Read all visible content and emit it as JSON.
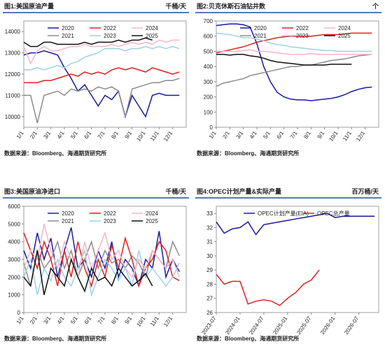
{
  "chart_data": [
    {
      "type": "line",
      "title": "图1:美国原油产量",
      "unit": "千桶/天",
      "source": "数据来源：Bloomberg、海通期货研究所",
      "x": [
        1,
        1.5,
        2,
        2.5,
        3,
        3.5,
        4,
        4.5,
        5,
        5.5,
        6,
        6.5,
        7,
        7.5,
        8,
        8.5,
        9,
        9.5,
        10,
        10.5,
        11,
        11.5,
        12,
        12.5
      ],
      "xlim": [
        1,
        13
      ],
      "xticks": [
        {
          "value": 1,
          "label": "1/1"
        },
        {
          "value": 2,
          "label": "2/1"
        },
        {
          "value": 3,
          "label": "3/1"
        },
        {
          "value": 4,
          "label": "4/1"
        },
        {
          "value": 5,
          "label": "5/1"
        },
        {
          "value": 6,
          "label": "6/1"
        },
        {
          "value": 7,
          "label": "7/1"
        },
        {
          "value": 8,
          "label": "8/1"
        },
        {
          "value": 9,
          "label": "9/1"
        },
        {
          "value": 10,
          "label": "10/1"
        },
        {
          "value": 11,
          "label": "11/1"
        },
        {
          "value": 12,
          "label": "12/1"
        }
      ],
      "ylim": [
        9500,
        14500
      ],
      "yticks": [
        10000,
        11000,
        12000,
        13000,
        14000
      ],
      "series": [
        {
          "name": "2020",
          "color": "#1a1a9c",
          "values": [
            12900,
            13000,
            13000,
            13100,
            13000,
            12900,
            12300,
            11800,
            11200,
            11500,
            11000,
            10500,
            11000,
            10800,
            11200,
            10000,
            11000,
            10500,
            10000,
            11000,
            11100,
            11000,
            11000,
            11000
          ]
        },
        {
          "name": "2021",
          "color": "#8c8c8c",
          "values": [
            11000,
            11000,
            9700,
            11000,
            11100,
            11200,
            11000,
            11300,
            11200,
            11300,
            11200,
            11400,
            11300,
            11400,
            11200,
            10000,
            11300,
            11400,
            11500,
            11600,
            11600,
            11700,
            11700,
            11800
          ]
        },
        {
          "name": "2022",
          "color": "#e02020",
          "values": [
            11600,
            11600,
            11600,
            11700,
            11700,
            11800,
            11900,
            12000,
            11900,
            12100,
            12000,
            12100,
            12000,
            12200,
            12300,
            12200,
            12300,
            12200,
            12100,
            12300,
            12200,
            12100,
            12000,
            12100
          ]
        },
        {
          "name": "2023",
          "color": "#9ed1e6",
          "values": [
            12200,
            12200,
            12300,
            12200,
            12300,
            12400,
            12300,
            12500,
            12600,
            12800,
            12900,
            13000,
            13200,
            13200,
            13200,
            13100,
            13200,
            13200,
            13300,
            13200,
            13300,
            13200,
            13300,
            13200
          ]
        },
        {
          "name": "2024",
          "color": "#f4b6c8",
          "values": [
            13300,
            12500,
            13100,
            13300,
            13100,
            13100,
            13200,
            13300,
            13300,
            13400,
            13300,
            13300,
            13300,
            13400,
            13300,
            13400,
            13500,
            13400,
            13500,
            13400,
            13600,
            13500,
            13600,
            13600
          ]
        },
        {
          "name": "2025",
          "color": "#111111",
          "values": [
            13500,
            13300,
            13300,
            13500,
            13500,
            13400,
            13400,
            13400,
            13400,
            13500,
            13400,
            13500,
            13500,
            13500,
            13600,
            13500,
            13600,
            13600,
            13700,
            13600,
            null,
            null,
            null,
            null
          ]
        }
      ]
    },
    {
      "type": "line",
      "title": "图2:贝克休斯石油钻井数",
      "unit": "个",
      "source": "数据来源：Bloomberg、海通期货研究所",
      "x": [
        1,
        1.5,
        2,
        2.5,
        3,
        3.5,
        4,
        4.5,
        5,
        5.5,
        6,
        6.5,
        7,
        7.5,
        8,
        8.5,
        9,
        9.5,
        10,
        10.5,
        11,
        11.5,
        12,
        12.5
      ],
      "xlim": [
        1,
        13
      ],
      "xticks": [
        {
          "value": 1,
          "label": "1/1"
        },
        {
          "value": 2,
          "label": "2/1"
        },
        {
          "value": 3,
          "label": "3/1"
        },
        {
          "value": 4,
          "label": "4/1"
        },
        {
          "value": 5,
          "label": "5/1"
        },
        {
          "value": 6,
          "label": "6/1"
        },
        {
          "value": 7,
          "label": "7/1"
        },
        {
          "value": 8,
          "label": "8/1"
        },
        {
          "value": 9,
          "label": "9/1"
        },
        {
          "value": 10,
          "label": "10/1"
        },
        {
          "value": 11,
          "label": "11/1"
        },
        {
          "value": 12,
          "label": "12/1"
        }
      ],
      "ylim": [
        0,
        700
      ],
      "yticks": [
        0,
        100,
        200,
        300,
        400,
        500,
        600,
        700
      ],
      "series": [
        {
          "name": "2020",
          "color": "#1a1a9c",
          "values": [
            670,
            675,
            680,
            680,
            675,
            660,
            550,
            400,
            300,
            230,
            200,
            185,
            180,
            180,
            175,
            180,
            185,
            190,
            200,
            215,
            235,
            250,
            260,
            265
          ]
        },
        {
          "name": "2021",
          "color": "#8c8c8c",
          "values": [
            270,
            290,
            300,
            310,
            320,
            340,
            350,
            360,
            370,
            380,
            390,
            400,
            400,
            410,
            410,
            420,
            430,
            440,
            445,
            450,
            460,
            470,
            475,
            480
          ]
        },
        {
          "name": "2022",
          "color": "#e02020",
          "values": [
            490,
            500,
            510,
            520,
            530,
            545,
            560,
            570,
            580,
            590,
            595,
            600,
            600,
            600,
            600,
            605,
            610,
            610,
            610,
            615,
            620,
            620,
            620,
            620
          ]
        },
        {
          "name": "2023",
          "color": "#9ed1e6",
          "values": [
            620,
            615,
            610,
            600,
            590,
            590,
            580,
            570,
            555,
            545,
            540,
            530,
            525,
            520,
            515,
            510,
            505,
            505,
            500,
            500,
            500,
            500,
            500,
            500
          ]
        },
        {
          "name": "2024",
          "color": "#f4b6c8",
          "values": [
            500,
            500,
            500,
            500,
            505,
            510,
            500,
            500,
            495,
            490,
            485,
            480,
            480,
            480,
            485,
            480,
            480,
            480,
            480,
            480,
            480,
            480,
            480,
            480
          ]
        },
        {
          "name": "2025",
          "color": "#111111",
          "values": [
            480,
            480,
            475,
            480,
            480,
            470,
            465,
            455,
            440,
            430,
            425,
            420,
            415,
            410,
            410,
            410,
            410,
            415,
            415,
            415,
            415,
            null,
            null,
            null
          ]
        }
      ]
    },
    {
      "type": "line",
      "title": "图3:美国原油净进口",
      "unit": "千桶/天",
      "source": "数据来源：Bloomberg、海通期货研究所",
      "x": [
        1,
        1.5,
        2,
        2.5,
        3,
        3.5,
        4,
        4.5,
        5,
        5.5,
        6,
        6.5,
        7,
        7.5,
        8,
        8.5,
        9,
        9.5,
        10,
        10.5,
        11,
        11.5,
        12,
        12.5
      ],
      "xlim": [
        1,
        13
      ],
      "xticks": [
        {
          "value": 1,
          "label": "1/1"
        },
        {
          "value": 2,
          "label": "2/1"
        },
        {
          "value": 3,
          "label": "3/1"
        },
        {
          "value": 4,
          "label": "4/1"
        },
        {
          "value": 5,
          "label": "5/1"
        },
        {
          "value": 6,
          "label": "6/1"
        },
        {
          "value": 7,
          "label": "7/1"
        },
        {
          "value": 8,
          "label": "8/1"
        },
        {
          "value": 9,
          "label": "9/1"
        },
        {
          "value": 10,
          "label": "10/1"
        },
        {
          "value": 11,
          "label": "11/1"
        },
        {
          "value": 12,
          "label": "12/1"
        }
      ],
      "ylim": [
        0,
        6000
      ],
      "yticks": [
        0,
        1000,
        2000,
        3000,
        4000,
        5000,
        6000
      ],
      "series": [
        {
          "name": "2020",
          "color": "#1a1a9c",
          "values": [
            3500,
            2500,
            4500,
            3000,
            4200,
            2000,
            3500,
            4800,
            2500,
            3000,
            2000,
            3500,
            2500,
            4000,
            2000,
            3000,
            2500,
            1500,
            3000,
            2500,
            4600,
            2000,
            3000,
            2300
          ]
        },
        {
          "name": "2021",
          "color": "#8c8c8c",
          "values": [
            2800,
            1500,
            3500,
            2500,
            3000,
            4000,
            2500,
            3500,
            2000,
            3000,
            4000,
            2500,
            3500,
            2800,
            3000,
            2500,
            3200,
            2800,
            2000,
            3500,
            3000,
            2500,
            4000,
            3200
          ]
        },
        {
          "name": "2022",
          "color": "#e02020",
          "values": [
            4500,
            3500,
            2500,
            4000,
            3000,
            1500,
            3500,
            2000,
            4000,
            2500,
            1500,
            3000,
            2000,
            3800,
            2500,
            4200,
            3000,
            1500,
            2500,
            3000,
            4000,
            3500,
            2000,
            1800
          ]
        },
        {
          "name": "2023",
          "color": "#9ed1e6",
          "values": [
            2000,
            3000,
            1000,
            2500,
            1800,
            3000,
            2000,
            1500,
            2500,
            3500,
            1000,
            2000,
            3000,
            2500,
            1800,
            2500,
            1500,
            3500,
            2000,
            2500,
            2000,
            1500,
            2000,
            2800
          ]
        },
        {
          "name": "2024",
          "color": "#f4b6c8",
          "values": [
            2500,
            3500,
            3000,
            5000,
            3500,
            2500,
            4000,
            3000,
            2000,
            4000,
            2500,
            3500,
            4500,
            3000,
            3500,
            2500,
            2000,
            3000,
            2500,
            3500,
            3000,
            2500,
            3000,
            2000
          ]
        },
        {
          "name": "2025",
          "color": "#111111",
          "values": [
            2000,
            1500,
            3500,
            1000,
            2500,
            2000,
            1500,
            3000,
            2000,
            1200,
            2500,
            1800,
            2000,
            1500,
            2500,
            2000,
            1500,
            1800,
            2200,
            1500,
            null,
            null,
            null,
            null
          ]
        }
      ]
    },
    {
      "type": "line",
      "title": "图4:OPEC计划产量&实际产量",
      "unit": "百万桶/天",
      "source": "数据来源：Bloomberg、海通期货研究所",
      "x": [
        0,
        2,
        4,
        6,
        8,
        10,
        12,
        14,
        16,
        18,
        20,
        22,
        24,
        26,
        28,
        30,
        32,
        34,
        36,
        38,
        40
      ],
      "xlim": [
        0,
        41
      ],
      "xticks": [
        {
          "value": 0,
          "label": "2023-07"
        },
        {
          "value": 6,
          "label": "2024-01"
        },
        {
          "value": 12,
          "label": "2024-07"
        },
        {
          "value": 18,
          "label": "2025-01"
        },
        {
          "value": 24,
          "label": "2025-07"
        },
        {
          "value": 30,
          "label": "2026-01"
        },
        {
          "value": 36,
          "label": "2026-07"
        }
      ],
      "ylim": [
        26,
        33.5
      ],
      "yticks": [
        26,
        27,
        28,
        29,
        30,
        31,
        32,
        33
      ],
      "series": [
        {
          "name": "OPEC计划产量(EIA)",
          "color": "#1a1a9c",
          "values": [
            32.4,
            31.6,
            31.9,
            32.0,
            32.4,
            31.5,
            32.2,
            32.3,
            32.4,
            32.5,
            32.6,
            32.7,
            32.8,
            32.9,
            33.0,
            32.7,
            32.8,
            32.8,
            32.8,
            32.8,
            32.8
          ]
        },
        {
          "name": "OPEC总产量",
          "color": "#e02020",
          "values": [
            28.7,
            28.0,
            28.2,
            28.2,
            26.6,
            26.8,
            26.9,
            26.8,
            26.5,
            27.0,
            27.4,
            28.0,
            28.3,
            29.0,
            null,
            null,
            null,
            null,
            null,
            null,
            null
          ]
        }
      ]
    }
  ]
}
